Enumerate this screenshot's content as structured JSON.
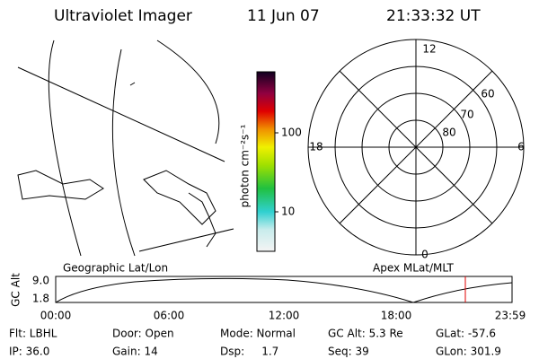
{
  "header": {
    "instrument": "Ultraviolet Imager",
    "date": "11 Jun 07",
    "time": "21:33:32 UT"
  },
  "colorbar": {
    "label": "photon cm⁻²s⁻¹",
    "ticks": [
      "100",
      "10"
    ]
  },
  "polar": {
    "mlt_labels": [
      "12",
      "18",
      "6",
      "0"
    ],
    "mlat_labels": [
      "60",
      "70",
      "80"
    ]
  },
  "orbit": {
    "left_title": "Geographic Lat/Lon",
    "right_title": "Apex MLat/MLT",
    "ylabel": "GC Alt",
    "yticks": [
      "9.0",
      "1.8"
    ],
    "xticks": [
      "00:00",
      "06:00",
      "12:00",
      "18:00",
      "23:59"
    ]
  },
  "footer": {
    "rows": [
      [
        "Flt: LBHL",
        "Door: Open",
        "Mode: Normal",
        "GC Alt: 5.3 Re",
        "GLat: -57.6"
      ],
      [
        "IP: 36.0",
        "Gain: 14",
        "Dsp:     1.7",
        "Seq: 39",
        "GLon: 301.9"
      ]
    ]
  }
}
